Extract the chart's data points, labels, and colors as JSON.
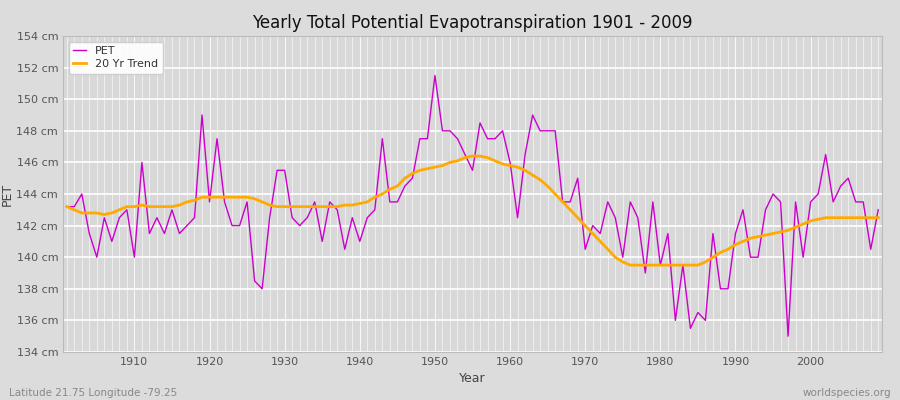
{
  "title": "Yearly Total Potential Evapotranspiration 1901 - 2009",
  "xlabel": "Year",
  "ylabel": "PET",
  "caption_left": "Latitude 21.75 Longitude -79.25",
  "caption_right": "worldspecies.org",
  "bg_color": "#dcdcdc",
  "plot_bg_color": "#d8d8d8",
  "pet_color": "#cc00cc",
  "trend_color": "#ffaa00",
  "ylim": [
    134,
    154
  ],
  "yticks": [
    134,
    136,
    138,
    140,
    142,
    144,
    146,
    148,
    150,
    152,
    154
  ],
  "xticks": [
    1910,
    1920,
    1930,
    1940,
    1950,
    1960,
    1970,
    1980,
    1990,
    2000
  ],
  "years": [
    1901,
    1902,
    1903,
    1904,
    1905,
    1906,
    1907,
    1908,
    1909,
    1910,
    1911,
    1912,
    1913,
    1914,
    1915,
    1916,
    1917,
    1918,
    1919,
    1920,
    1921,
    1922,
    1923,
    1924,
    1925,
    1926,
    1927,
    1928,
    1929,
    1930,
    1931,
    1932,
    1933,
    1934,
    1935,
    1936,
    1937,
    1938,
    1939,
    1940,
    1941,
    1942,
    1943,
    1944,
    1945,
    1946,
    1947,
    1948,
    1949,
    1950,
    1951,
    1952,
    1953,
    1954,
    1955,
    1956,
    1957,
    1958,
    1959,
    1960,
    1961,
    1962,
    1963,
    1964,
    1965,
    1966,
    1967,
    1968,
    1969,
    1970,
    1971,
    1972,
    1973,
    1974,
    1975,
    1976,
    1977,
    1978,
    1979,
    1980,
    1981,
    1982,
    1983,
    1984,
    1985,
    1986,
    1987,
    1988,
    1989,
    1990,
    1991,
    1992,
    1993,
    1994,
    1995,
    1996,
    1997,
    1998,
    1999,
    2000,
    2001,
    2002,
    2003,
    2004,
    2005,
    2006,
    2007,
    2008,
    2009
  ],
  "pet": [
    143.2,
    143.2,
    144.0,
    141.5,
    140.0,
    142.5,
    141.0,
    142.5,
    143.0,
    140.0,
    146.0,
    141.5,
    142.5,
    141.5,
    143.0,
    141.5,
    142.0,
    142.5,
    149.0,
    143.5,
    147.5,
    143.5,
    142.0,
    142.0,
    143.5,
    138.5,
    138.0,
    142.5,
    145.5,
    145.5,
    142.5,
    142.0,
    142.5,
    143.5,
    141.0,
    143.5,
    143.0,
    140.5,
    142.5,
    141.0,
    142.5,
    143.0,
    147.5,
    143.5,
    143.5,
    144.5,
    145.0,
    147.5,
    147.5,
    151.5,
    148.0,
    148.0,
    147.5,
    146.5,
    145.5,
    148.5,
    147.5,
    147.5,
    148.0,
    146.0,
    142.5,
    146.5,
    149.0,
    148.0,
    148.0,
    148.0,
    143.5,
    143.5,
    145.0,
    140.5,
    142.0,
    141.5,
    143.5,
    142.5,
    140.0,
    143.5,
    142.5,
    139.0,
    143.5,
    139.5,
    141.5,
    136.0,
    139.5,
    135.5,
    136.5,
    136.0,
    141.5,
    138.0,
    138.0,
    141.5,
    143.0,
    140.0,
    140.0,
    143.0,
    144.0,
    143.5,
    135.0,
    143.5,
    140.0,
    143.5,
    144.0,
    146.5,
    143.5,
    144.5,
    145.0,
    143.5,
    143.5,
    140.5,
    143.0
  ],
  "trend": [
    143.2,
    143.0,
    142.8,
    142.8,
    142.8,
    142.7,
    142.8,
    143.0,
    143.2,
    143.2,
    143.3,
    143.2,
    143.2,
    143.2,
    143.2,
    143.3,
    143.5,
    143.6,
    143.8,
    143.8,
    143.8,
    143.8,
    143.8,
    143.8,
    143.8,
    143.7,
    143.5,
    143.3,
    143.2,
    143.2,
    143.2,
    143.2,
    143.2,
    143.2,
    143.2,
    143.2,
    143.2,
    143.3,
    143.3,
    143.4,
    143.5,
    143.8,
    144.0,
    144.3,
    144.5,
    145.0,
    145.3,
    145.5,
    145.6,
    145.7,
    145.8,
    146.0,
    146.1,
    146.3,
    146.4,
    146.4,
    146.3,
    146.1,
    145.9,
    145.8,
    145.7,
    145.5,
    145.2,
    144.9,
    144.5,
    144.0,
    143.5,
    143.0,
    142.5,
    142.0,
    141.5,
    141.0,
    140.5,
    140.0,
    139.7,
    139.5,
    139.5,
    139.5,
    139.5,
    139.5,
    139.5,
    139.5,
    139.5,
    139.5,
    139.5,
    139.7,
    140.0,
    140.3,
    140.5,
    140.8,
    141.0,
    141.2,
    141.3,
    141.4,
    141.5,
    141.6,
    141.7,
    141.9,
    142.1,
    142.3,
    142.4,
    142.5,
    142.5,
    142.5,
    142.5,
    142.5,
    142.5,
    142.5,
    142.5
  ]
}
